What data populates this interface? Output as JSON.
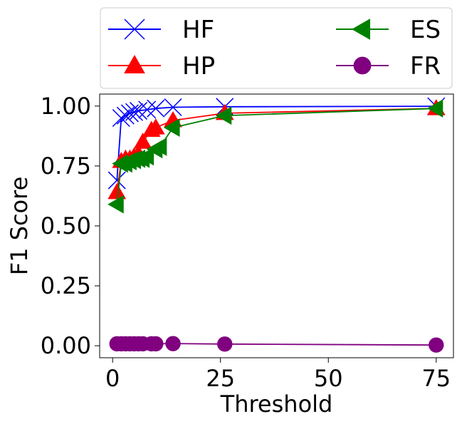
{
  "chart_data": {
    "type": "line",
    "xlabel": "Threshold",
    "ylabel": "F1 Score",
    "xlim": [
      -3,
      79
    ],
    "ylim": [
      -0.05,
      1.05
    ],
    "xticks": [
      0,
      25,
      50,
      75
    ],
    "xtick_labels": [
      "0",
      "25",
      "50",
      "75"
    ],
    "yticks": [
      0.0,
      0.25,
      0.5,
      0.75,
      1.0
    ],
    "ytick_labels": [
      "0.00",
      "0.25",
      "0.50",
      "0.75",
      "1.00"
    ],
    "grid": false,
    "legend_position": "above plot, 2 columns",
    "series": [
      {
        "name": "HF",
        "color": "#0000ff",
        "marker": "x",
        "x": [
          1,
          2,
          3,
          4,
          5,
          6,
          8,
          10,
          14,
          26,
          75
        ],
        "y": [
          0.69,
          0.95,
          0.96,
          0.97,
          0.975,
          0.98,
          0.985,
          0.99,
          0.995,
          0.997,
          0.999
        ]
      },
      {
        "name": "HP",
        "color": "#ff0000",
        "marker": "triangle-up",
        "x": [
          1,
          2,
          3,
          4,
          5,
          6,
          7,
          9,
          10,
          14,
          26,
          75
        ],
        "y": [
          0.64,
          0.77,
          0.78,
          0.78,
          0.79,
          0.8,
          0.85,
          0.9,
          0.91,
          0.94,
          0.97,
          0.99
        ]
      },
      {
        "name": "ES",
        "color": "#008000",
        "marker": "triangle-left",
        "x": [
          1,
          2,
          3,
          4,
          5,
          6,
          7,
          8,
          10,
          11,
          14,
          26,
          75
        ],
        "y": [
          0.59,
          0.76,
          0.76,
          0.77,
          0.775,
          0.78,
          0.78,
          0.79,
          0.82,
          0.83,
          0.91,
          0.96,
          0.99
        ]
      },
      {
        "name": "FR",
        "color": "#800080",
        "marker": "circle",
        "x": [
          1,
          2,
          3,
          4,
          5,
          6,
          7,
          9,
          10,
          14,
          26,
          75
        ],
        "y": [
          0.008,
          0.008,
          0.008,
          0.008,
          0.008,
          0.008,
          0.008,
          0.008,
          0.008,
          0.009,
          0.007,
          0.003
        ]
      }
    ]
  }
}
